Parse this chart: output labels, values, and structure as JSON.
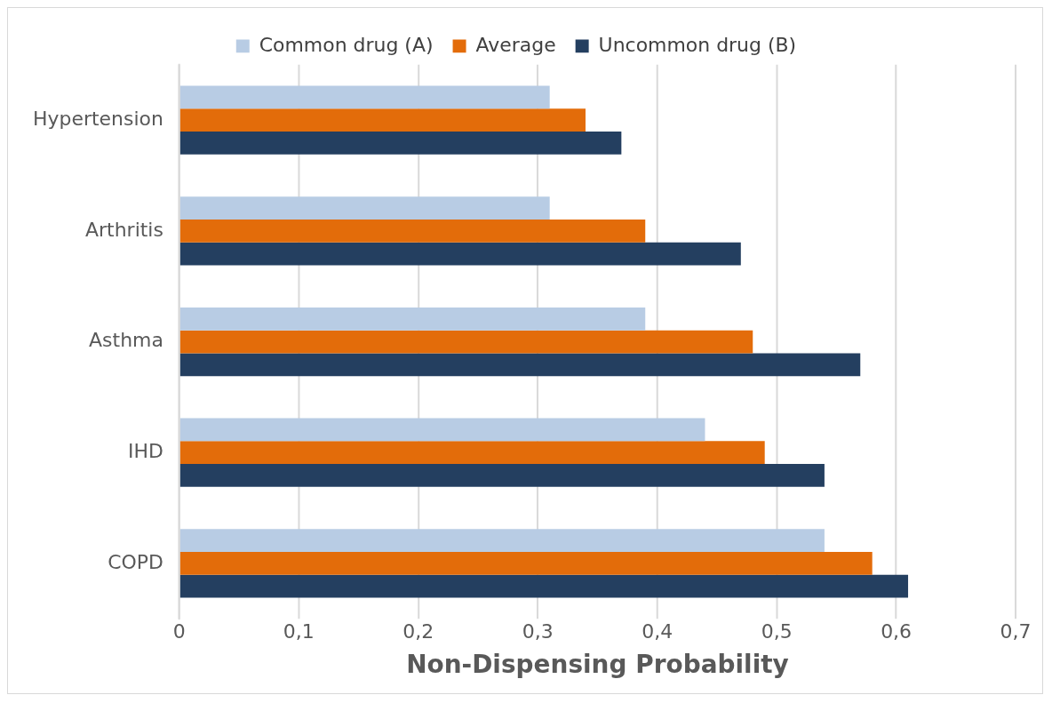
{
  "chart_data": {
    "type": "bar",
    "orientation": "horizontal",
    "xlabel": "Non-Dispensing Probability",
    "categories": [
      "Hypertension",
      "Arthritis",
      "Asthma",
      "IHD",
      "COPD"
    ],
    "series": [
      {
        "name": "Common drug (A)",
        "color": "#b8cce4",
        "values": [
          0.31,
          0.31,
          0.39,
          0.44,
          0.54
        ]
      },
      {
        "name": "Average",
        "color": "#e36c0a",
        "values": [
          0.34,
          0.39,
          0.48,
          0.49,
          0.58
        ]
      },
      {
        "name": "Uncommon drug (B)",
        "color": "#243f60",
        "values": [
          0.37,
          0.47,
          0.57,
          0.54,
          0.61
        ]
      }
    ],
    "xlim": [
      0,
      0.7
    ],
    "xticks": [
      0,
      {
        "value": 0.1,
        "label": "0,1"
      },
      {
        "value": 0.2,
        "label": "0,2"
      },
      {
        "value": 0.3,
        "label": "0,3"
      },
      {
        "value": 0.4,
        "label": "0,4"
      },
      {
        "value": 0.5,
        "label": "0,5"
      },
      {
        "value": 0.6,
        "label": "0,6"
      },
      {
        "value": 0.7,
        "label": "0,7"
      }
    ],
    "grid": "x",
    "legend": "top"
  }
}
